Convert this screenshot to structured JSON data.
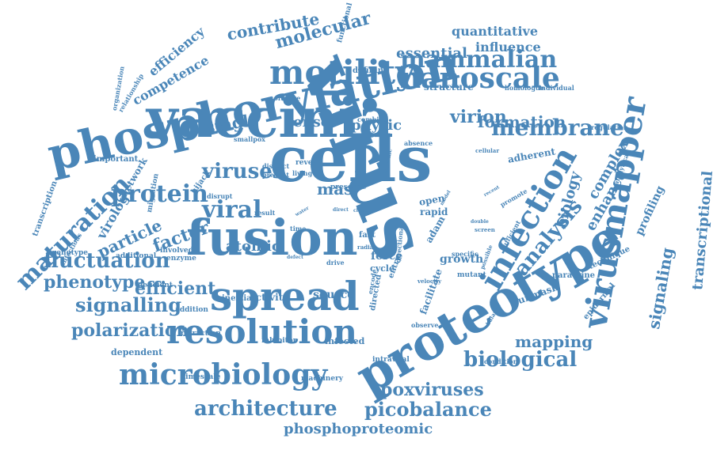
{
  "cloud": {
    "color": "#4a86b8",
    "words": [
      "virus",
      "vaccinia",
      "cells",
      "phosphorylation",
      "proteotype",
      "fusion",
      "spread",
      "virusmapper",
      "motility",
      "resolution",
      "infection",
      "microbiology",
      "nanoscale",
      "mammalian",
      "membrane",
      "architecture",
      "analysis",
      "maturation",
      "protein",
      "viruses",
      "viral",
      "biological",
      "fluctuation",
      "signalling",
      "picobalance",
      "poxviruses",
      "mapping",
      "signaling",
      "transcriptional",
      "efficient",
      "polarization",
      "phenotype",
      "phosphoproteomic",
      "molecular",
      "contribute",
      "virion",
      "formation",
      "enhance",
      "complex",
      "biology",
      "profiling",
      "sensor",
      "single",
      "physic",
      "factor",
      "particle",
      "atomic",
      "quantitative",
      "essential",
      "influence",
      "competence",
      "efficiency",
      "virology",
      "source",
      "adherent",
      "structure",
      "mas",
      "network",
      "transcription",
      "important",
      "migration",
      "hijack",
      "defining",
      "open",
      "rapid",
      "adam",
      "growth",
      "force",
      "cycle",
      "unmask",
      "paracrine",
      "technique",
      "epidermal",
      "activity",
      "inertial",
      "infected",
      "intravital",
      "machinery",
      "timescale",
      "dependent",
      "retraction",
      "inhibitor",
      "addition",
      "deficient",
      "enzyme",
      "involved",
      "additional",
      "genotype",
      "infectious",
      "organization",
      "relationship",
      "functional",
      "software",
      "combine",
      "smallpox",
      "absence",
      "cellular",
      "regulation",
      "homologue",
      "individual",
      "analytical",
      "promote",
      "sufficient",
      "distinct",
      "present",
      "living",
      "reveal",
      "studies",
      "dynamic",
      "presence",
      "disrupt",
      "result",
      "water",
      "direct",
      "close",
      "time",
      "drive",
      "defect",
      "fast",
      "radial",
      "velocity",
      "specific",
      "mutant",
      "possible",
      "facilitate",
      "directed",
      "encode",
      "observe",
      "balance",
      "condition",
      "model",
      "recent",
      "double",
      "screen",
      "directional",
      "entry"
    ]
  }
}
